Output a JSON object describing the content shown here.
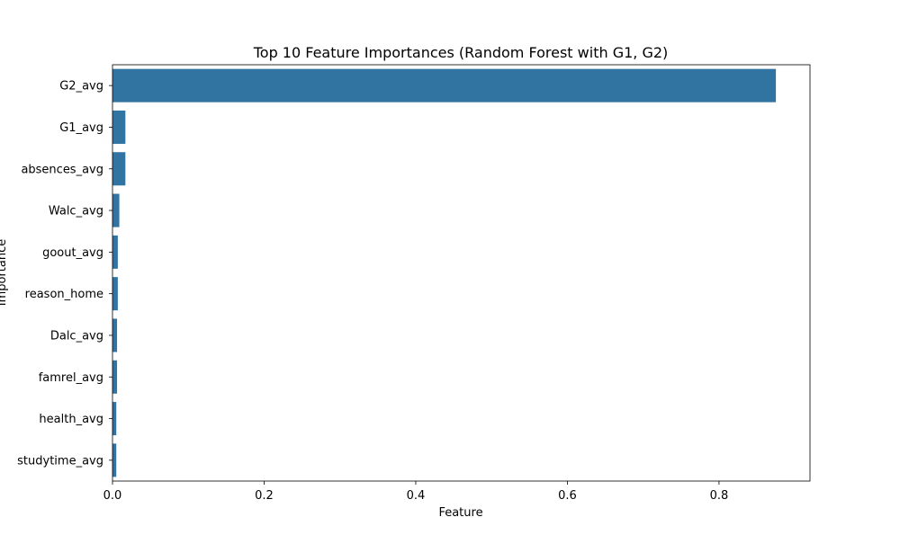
{
  "chart_data": {
    "type": "bar",
    "orientation": "horizontal",
    "title": "Top 10 Feature Importances (Random Forest with G1, G2)",
    "xlabel": "Feature",
    "ylabel": "Importance",
    "categories": [
      "G2_avg",
      "G1_avg",
      "absences_avg",
      "Walc_avg",
      "goout_avg",
      "reason_home",
      "Dalc_avg",
      "famrel_avg",
      "health_avg",
      "studytime_avg"
    ],
    "values": [
      0.875,
      0.017,
      0.017,
      0.009,
      0.007,
      0.007,
      0.006,
      0.006,
      0.005,
      0.005
    ],
    "xlim": [
      0,
      0.92
    ],
    "xticks": [
      0.0,
      0.2,
      0.4,
      0.6,
      0.8
    ],
    "xtick_labels": [
      "0.0",
      "0.2",
      "0.4",
      "0.6",
      "0.8"
    ],
    "grid": false,
    "legend": "none",
    "bar_color": "#3274a1"
  }
}
